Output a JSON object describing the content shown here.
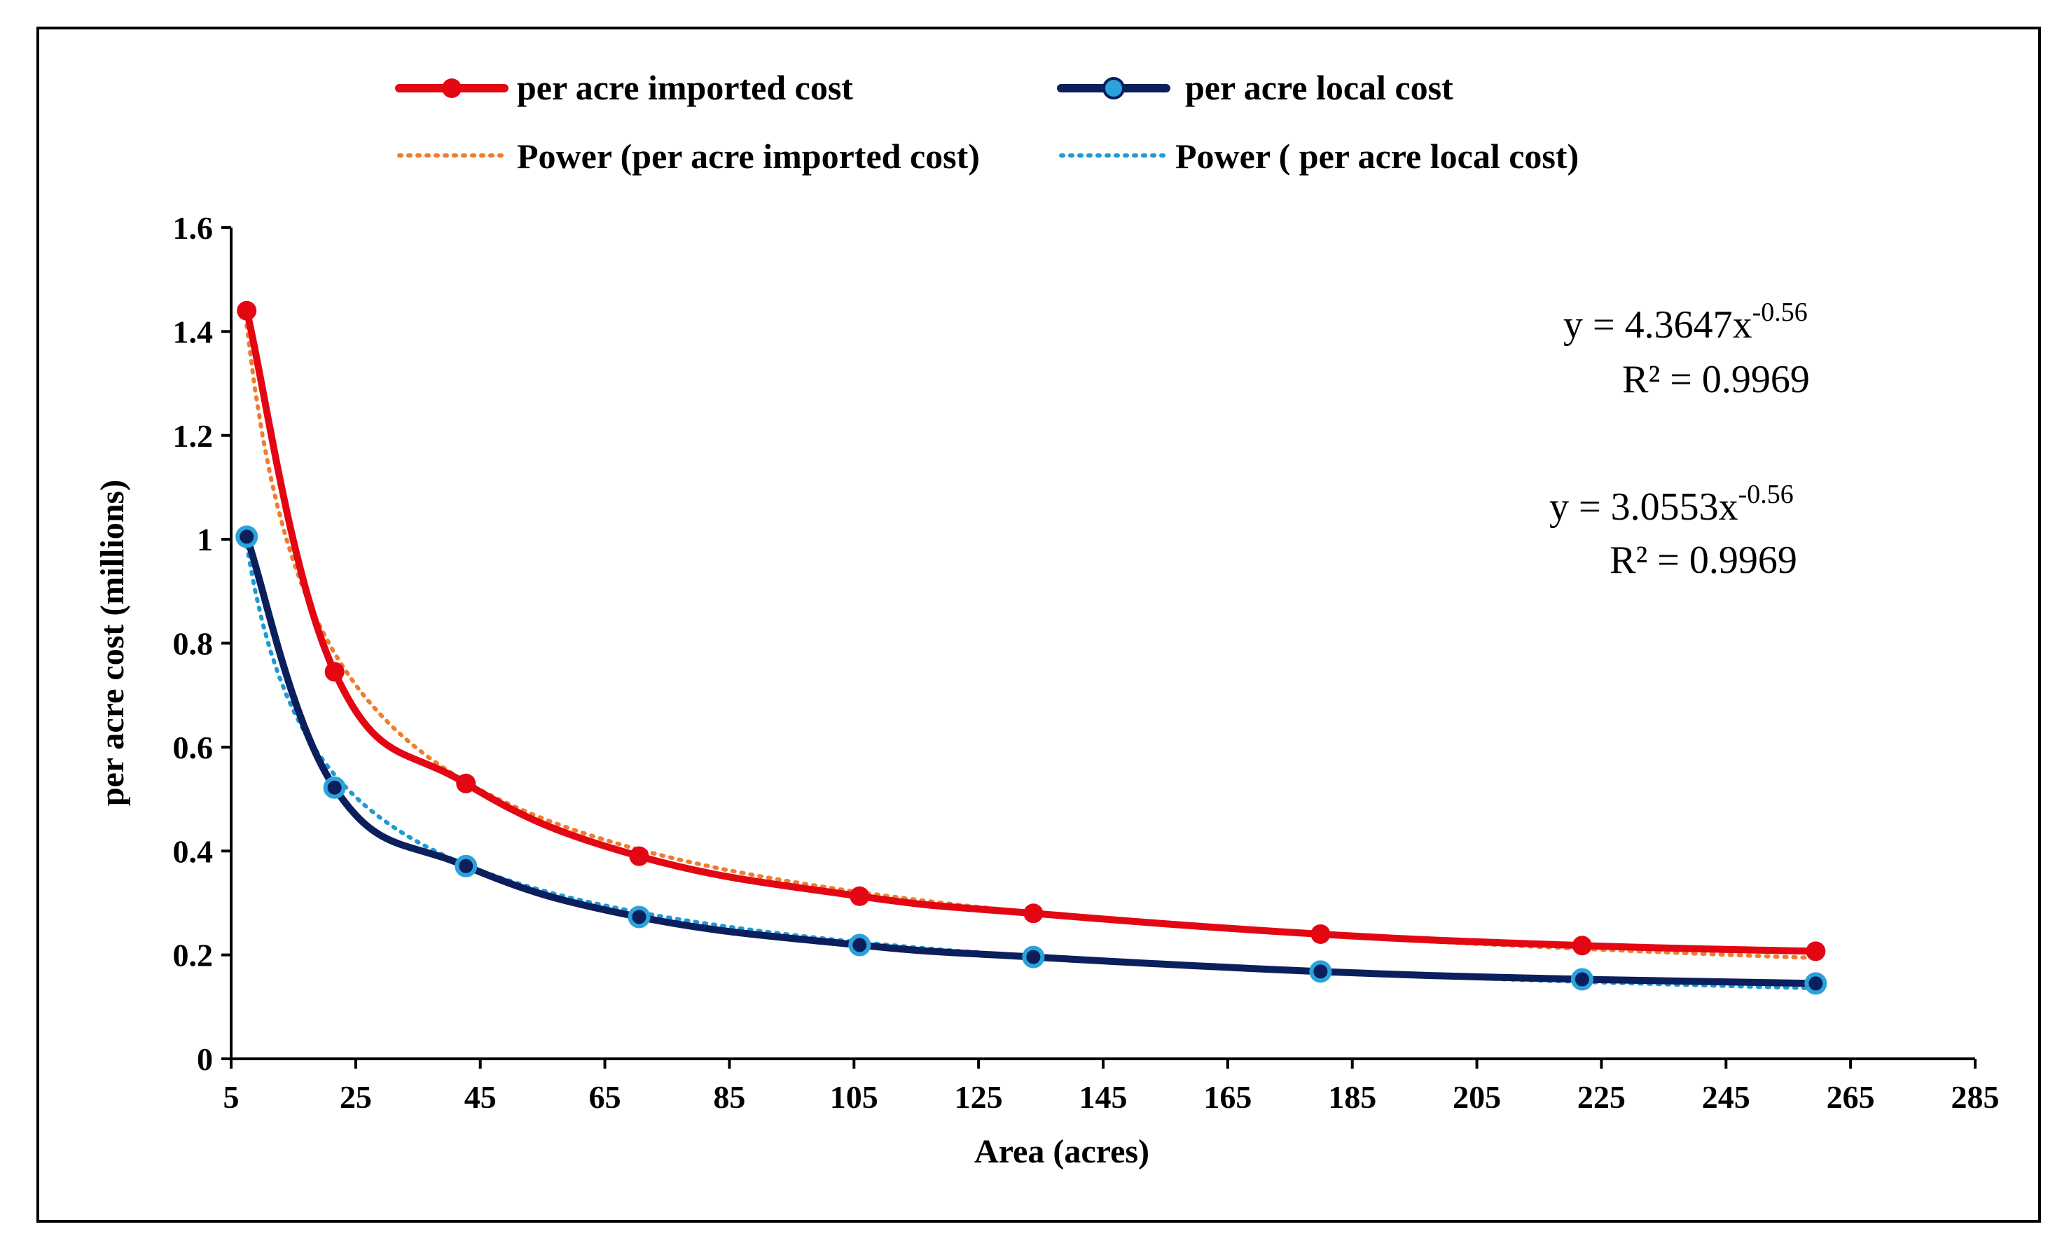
{
  "chart_data": {
    "type": "line",
    "title": "",
    "xlabel": "Area  (acres)",
    "ylabel": "per acre cost (millions)",
    "xlim": [
      5,
      285
    ],
    "ylim": [
      0,
      1.6
    ],
    "x_ticks": [
      "5",
      "25",
      "45",
      "65",
      "85",
      "105",
      "125",
      "145",
      "165",
      "185",
      "205",
      "225",
      "245",
      "265",
      "285"
    ],
    "y_ticks": [
      "0",
      "0.2",
      "0.4",
      "0.6",
      "0.8",
      "1",
      "1.2",
      "1.4",
      "1.6"
    ],
    "grid": false,
    "legend_position": "top",
    "x": [
      7.5,
      21.6,
      42.7,
      70.5,
      105.9,
      133.8,
      179.9,
      221.9,
      259.4
    ],
    "series": [
      {
        "name": "per acre imported cost",
        "style": "line-marker",
        "color": "#e30613",
        "values": [
          1.44,
          0.745,
          0.53,
          0.39,
          0.313,
          0.28,
          0.24,
          0.218,
          0.207
        ]
      },
      {
        "name": "per acre local cost",
        "style": "line-marker",
        "color": "#0a1f5c",
        "marker_color": "#2aa3dc",
        "values": [
          1.005,
          0.522,
          0.371,
          0.273,
          0.219,
          0.196,
          0.168,
          0.153,
          0.145
        ]
      },
      {
        "name": "Power (per acre imported cost)",
        "style": "dotted-trend",
        "color": "#f07c2e",
        "coef": 4.3647,
        "exp": -0.56
      },
      {
        "name": "Power ( per acre local cost)",
        "style": "dotted-trend",
        "color": "#1e9ad6",
        "coef": 3.0553,
        "exp": -0.56
      }
    ],
    "annotations": [
      {
        "eq_main": "y = 4.3647x",
        "eq_exp": "-0.56",
        "r2": "R² = 0.9969"
      },
      {
        "eq_main": "y = 3.0553x",
        "eq_exp": "-0.56",
        "r2": "R² = 0.9969"
      }
    ]
  }
}
